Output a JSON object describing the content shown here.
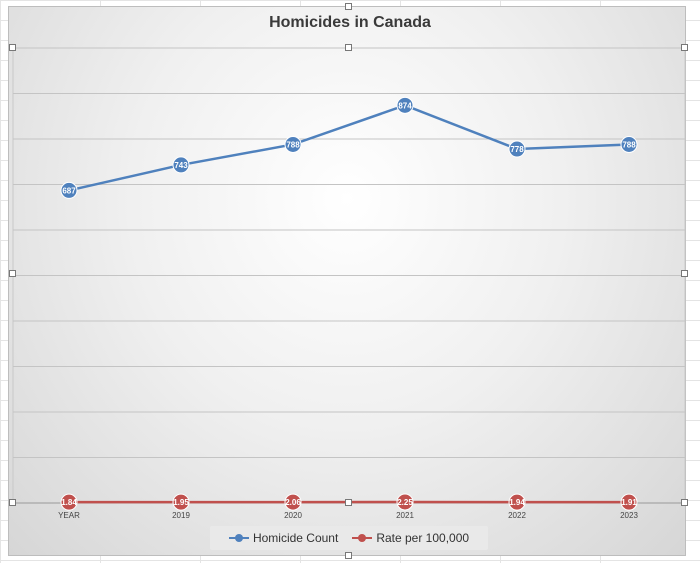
{
  "chart_data": {
    "type": "line",
    "title": "Homicides in Canada",
    "categories": [
      "YEAR",
      "2019",
      "2020",
      "2021",
      "2022",
      "2023"
    ],
    "series": [
      {
        "name": "Homicide Count",
        "values": [
          687,
          743,
          788,
          874,
          778,
          788
        ],
        "color": "#4f81bd"
      },
      {
        "name": "Rate per 100,000",
        "values": [
          1.84,
          1.95,
          2.06,
          2.25,
          1.94,
          1.91
        ],
        "color": "#c0504d"
      }
    ],
    "ylim": [
      0,
      1000
    ],
    "grid": true,
    "legend": "bottom"
  }
}
